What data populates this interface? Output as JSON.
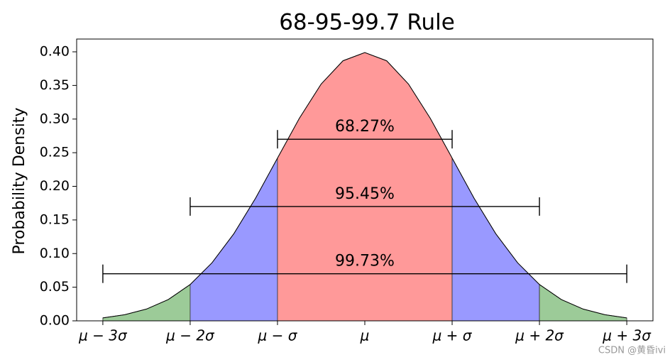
{
  "chart_data": {
    "type": "area",
    "title": "68-95-99.7 Rule",
    "y_label": "Probability Density",
    "x": [
      -3,
      -2.75,
      -2.5,
      -2.25,
      -2,
      -1.75,
      -1.5,
      -1.25,
      -1,
      -0.75,
      -0.5,
      -0.25,
      0,
      0.25,
      0.5,
      0.75,
      1,
      1.25,
      1.5,
      1.75,
      2,
      2.25,
      2.5,
      2.75,
      3
    ],
    "values": [
      0.0044,
      0.0091,
      0.0175,
      0.0317,
      0.054,
      0.0863,
      0.1295,
      0.1826,
      0.242,
      0.3011,
      0.3521,
      0.3867,
      0.3989,
      0.3867,
      0.3521,
      0.3011,
      0.242,
      0.1826,
      0.1295,
      0.0863,
      0.054,
      0.0317,
      0.0175,
      0.0091,
      0.0044
    ],
    "color": "#000000",
    "regions": [
      {
        "from": -3,
        "to": -2,
        "color": "#9ccb98"
      },
      {
        "from": -2,
        "to": -1,
        "color": "#9999ff"
      },
      {
        "from": -1,
        "to": 1,
        "color": "#ff9999"
      },
      {
        "from": 1,
        "to": 2,
        "color": "#9999ff"
      },
      {
        "from": 2,
        "to": 3,
        "color": "#9ccb98"
      }
    ],
    "intervals": [
      {
        "from": -1,
        "to": 1,
        "y": 0.27,
        "label": "68.27%"
      },
      {
        "from": -2,
        "to": 2,
        "y": 0.17,
        "label": "95.45%"
      },
      {
        "from": -3,
        "to": 3,
        "y": 0.07,
        "label": "99.73%"
      }
    ],
    "xlim": [
      -3.3,
      3.3
    ],
    "ylim": [
      0,
      0.419
    ],
    "xticks": [
      {
        "value": -3,
        "label": "μ − 3σ"
      },
      {
        "value": -2,
        "label": "μ − 2σ"
      },
      {
        "value": -1,
        "label": "μ − σ"
      },
      {
        "value": 0,
        "label": "μ"
      },
      {
        "value": 1,
        "label": "μ + σ"
      },
      {
        "value": 2,
        "label": "μ + 2σ"
      },
      {
        "value": 3,
        "label": "μ + 3σ"
      }
    ],
    "yticks": [
      {
        "value": 0,
        "label": "0.00"
      },
      {
        "value": 0.05,
        "label": "0.05"
      },
      {
        "value": 0.1,
        "label": "0.10"
      },
      {
        "value": 0.15,
        "label": "0.15"
      },
      {
        "value": 0.2,
        "label": "0.20"
      },
      {
        "value": 0.25,
        "label": "0.25"
      },
      {
        "value": 0.3,
        "label": "0.30"
      },
      {
        "value": 0.35,
        "label": "0.35"
      },
      {
        "value": 0.4,
        "label": "0.40"
      }
    ]
  },
  "watermark": "CSDN @黄昏ivi"
}
